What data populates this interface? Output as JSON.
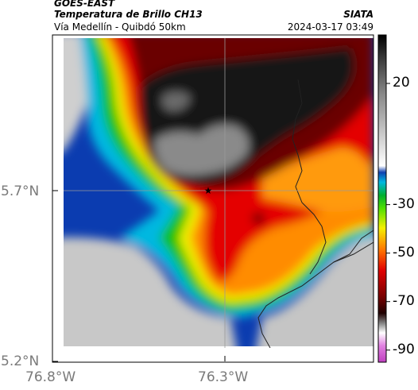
{
  "header": {
    "satellite": "GOES-EAST",
    "product": "Temperatura de Brillo CH13",
    "region": "Vía Medellín - Quibdó 50km",
    "agency": "SIATA",
    "timestamp": "2024-03-17 03:49"
  },
  "axes": {
    "y_ticks": [
      "5.7°N",
      "5.2°N"
    ],
    "x_ticks": [
      "76.8°W",
      "76.3°W"
    ]
  },
  "colorbar": {
    "ticks": [
      "20",
      "-30",
      "-50",
      "-70",
      "-90"
    ],
    "values": [
      20,
      -30,
      -50,
      -70,
      -90
    ],
    "range": [
      -95,
      40
    ],
    "colors": {
      "warm": "#d0d0d0",
      "blue": "#0a3fb4",
      "cyan": "#00bfe6",
      "green": "#00c800",
      "yellow": "#f0f000",
      "orange": "#ff8c00",
      "red": "#e60000",
      "darkred": "#640000",
      "black": "#101010",
      "magenta": "#c040c0"
    }
  },
  "map": {
    "marker": "star-marker",
    "colors": {
      "background_gray": "#c8c8c8",
      "white_gap": "#ffffff"
    }
  }
}
